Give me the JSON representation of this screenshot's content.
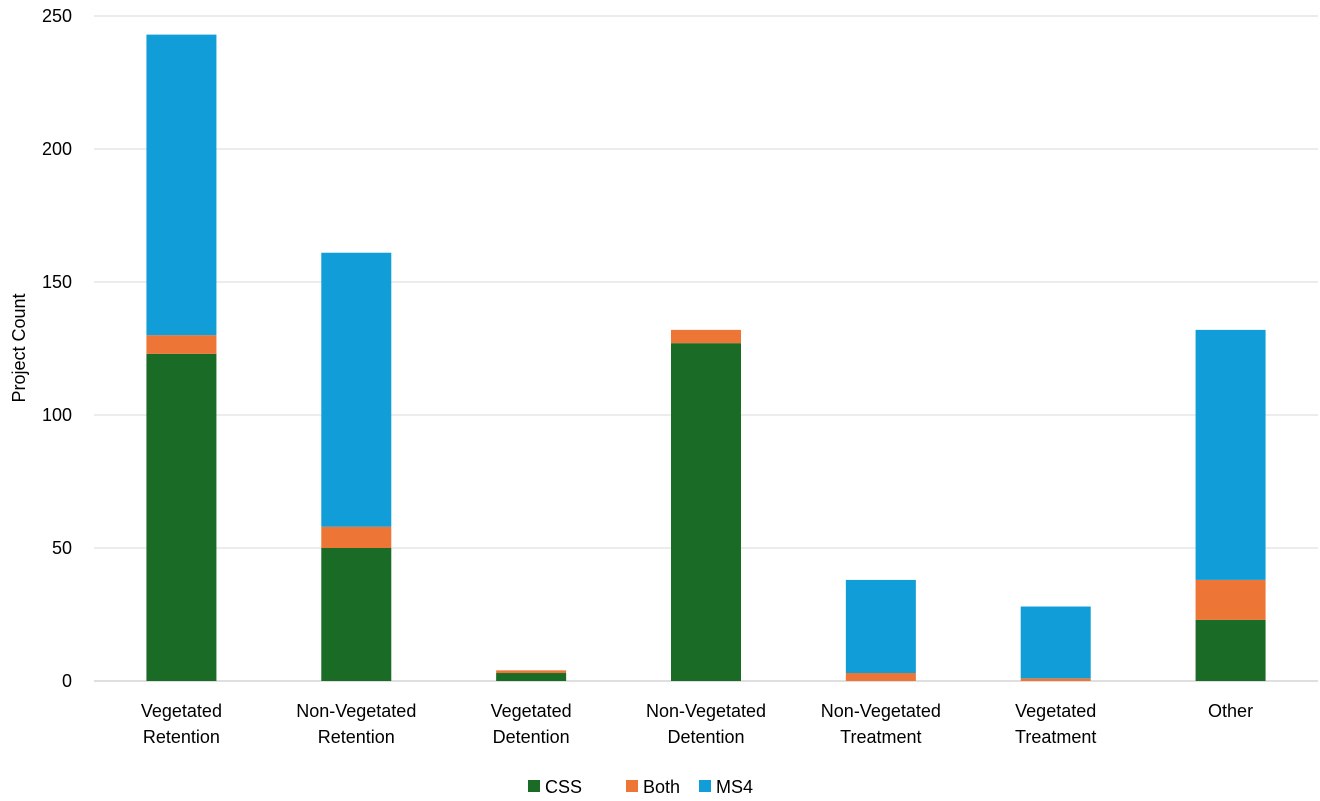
{
  "chart_data": {
    "type": "bar",
    "stacked": true,
    "title": "",
    "xlabel": "",
    "ylabel": "Project Count",
    "ylim": [
      0,
      250
    ],
    "yticks": [
      0,
      50,
      100,
      150,
      200,
      250
    ],
    "grid": true,
    "legend_position": "bottom",
    "categories": [
      [
        "Vegetated",
        "Retention"
      ],
      [
        "Non-Vegetated",
        "Retention"
      ],
      [
        "Vegetated",
        "Detention"
      ],
      [
        "Non-Vegetated",
        "Detention"
      ],
      [
        "Non-Vegetated",
        "Treatment"
      ],
      [
        "Vegetated",
        "Treatment"
      ],
      [
        "Other"
      ]
    ],
    "series": [
      {
        "name": "CSS",
        "color": "#1a6b26",
        "values": [
          123,
          50,
          3,
          127,
          0,
          0,
          23
        ]
      },
      {
        "name": "Both",
        "color": "#ed7535",
        "values": [
          7,
          8,
          1,
          5,
          3,
          1,
          15
        ]
      },
      {
        "name": "MS4",
        "color": "#119ed8",
        "values": [
          113,
          103,
          0,
          0,
          35,
          27,
          94
        ]
      }
    ]
  }
}
